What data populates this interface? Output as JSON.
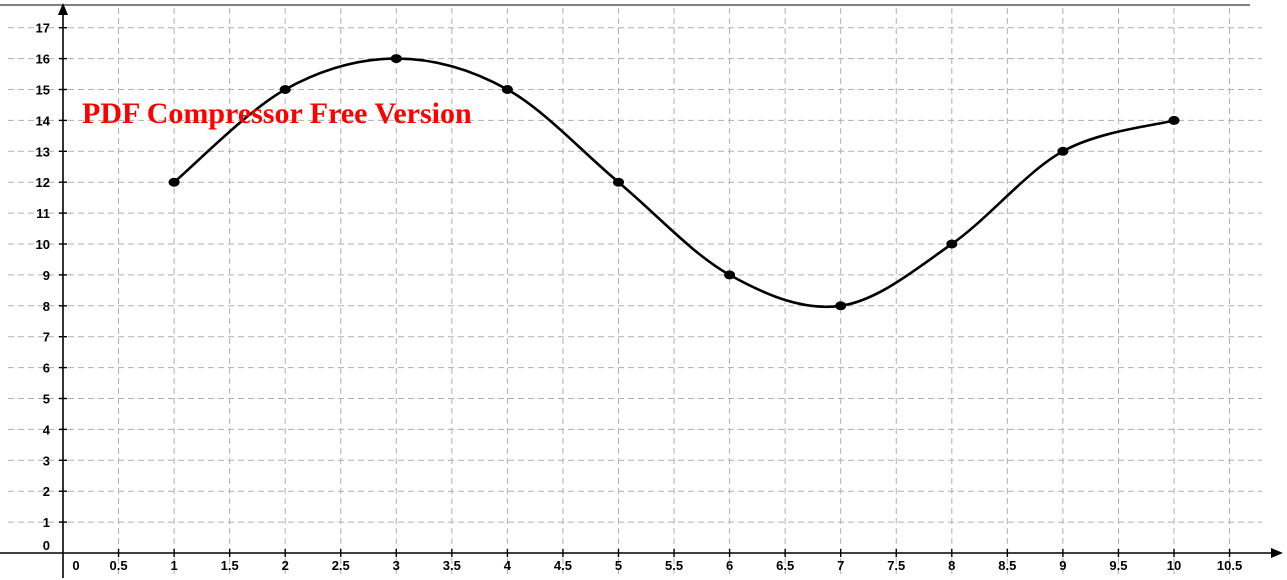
{
  "watermark_text": "PDF Compressor Free Version",
  "chart_data": {
    "type": "line",
    "x": [
      1,
      2,
      3,
      4,
      5,
      6,
      7,
      8,
      9,
      10
    ],
    "y": [
      12,
      15,
      16,
      15,
      12,
      9,
      8,
      10,
      13,
      14
    ],
    "xlim": [
      0,
      10.5
    ],
    "ylim": [
      0,
      17
    ],
    "x_ticks": [
      0,
      0.5,
      1,
      1.5,
      2,
      2.5,
      3,
      3.5,
      4,
      4.5,
      5,
      5.5,
      6,
      6.5,
      7,
      7.5,
      8,
      8.5,
      9,
      9.5,
      10,
      10.5
    ],
    "x_tick_labels": [
      "0",
      "0.5",
      "1",
      "1.5",
      "2",
      "2.5",
      "3",
      "3.5",
      "4",
      "4.5",
      "5",
      "5.5",
      "6",
      "6.5",
      "7",
      "7.5",
      "8",
      "8.5",
      "9",
      "9.5",
      "10",
      "10.5"
    ],
    "y_ticks": [
      0,
      1,
      2,
      3,
      4,
      5,
      6,
      7,
      8,
      9,
      10,
      11,
      12,
      13,
      14,
      15,
      16,
      17
    ],
    "y_tick_labels": [
      "0",
      "1",
      "2",
      "3",
      "4",
      "5",
      "6",
      "7",
      "8",
      "9",
      "10",
      "11",
      "12",
      "13",
      "14",
      "15",
      "16",
      "17"
    ],
    "grid": true,
    "smooth": true,
    "line_color": "#000000",
    "point_color": "#000000",
    "watermark_color": "#ff0000",
    "title": "",
    "xlabel": "",
    "ylabel": ""
  }
}
